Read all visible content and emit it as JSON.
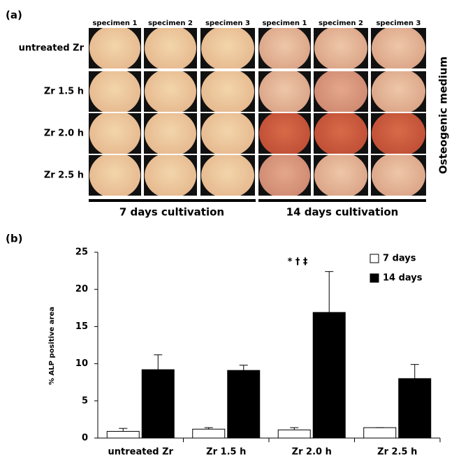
{
  "panel_a": {
    "label": "(a)",
    "columns": [
      "specimen 1",
      "specimen 2",
      "specimen 3",
      "specimen 1",
      "specimen 2",
      "specimen 3"
    ],
    "rows": [
      "untreated Zr",
      "Zr 1.5 h",
      "Zr 2.0 h",
      "Zr 2.5 h"
    ],
    "side_label": "Osteogenic medium",
    "groups": [
      "7 days cultivation",
      "14 days cultivation"
    ]
  },
  "chart_data": {
    "type": "bar",
    "panel_label": "(b)",
    "y_label": "% ALP positive area",
    "categories": [
      "untreated Zr",
      "Zr 1.5 h",
      "Zr 2.0 h",
      "Zr 2.5 h"
    ],
    "series": [
      {
        "name": "7 days",
        "color": "#ffffff",
        "values": [
          0.9,
          1.2,
          1.1,
          1.4
        ],
        "errors": [
          0.4,
          0.2,
          0.3,
          0
        ]
      },
      {
        "name": "14 days",
        "color": "#000000",
        "values": [
          9.2,
          9.1,
          16.9,
          8.0
        ],
        "errors": [
          2.0,
          0.7,
          5.5,
          1.9
        ]
      }
    ],
    "annotation": "* † ‡",
    "ylim": [
      0,
      25
    ],
    "yticks": [
      0,
      5,
      10,
      15,
      20,
      25
    ],
    "grid": false,
    "legend": "top-right"
  }
}
